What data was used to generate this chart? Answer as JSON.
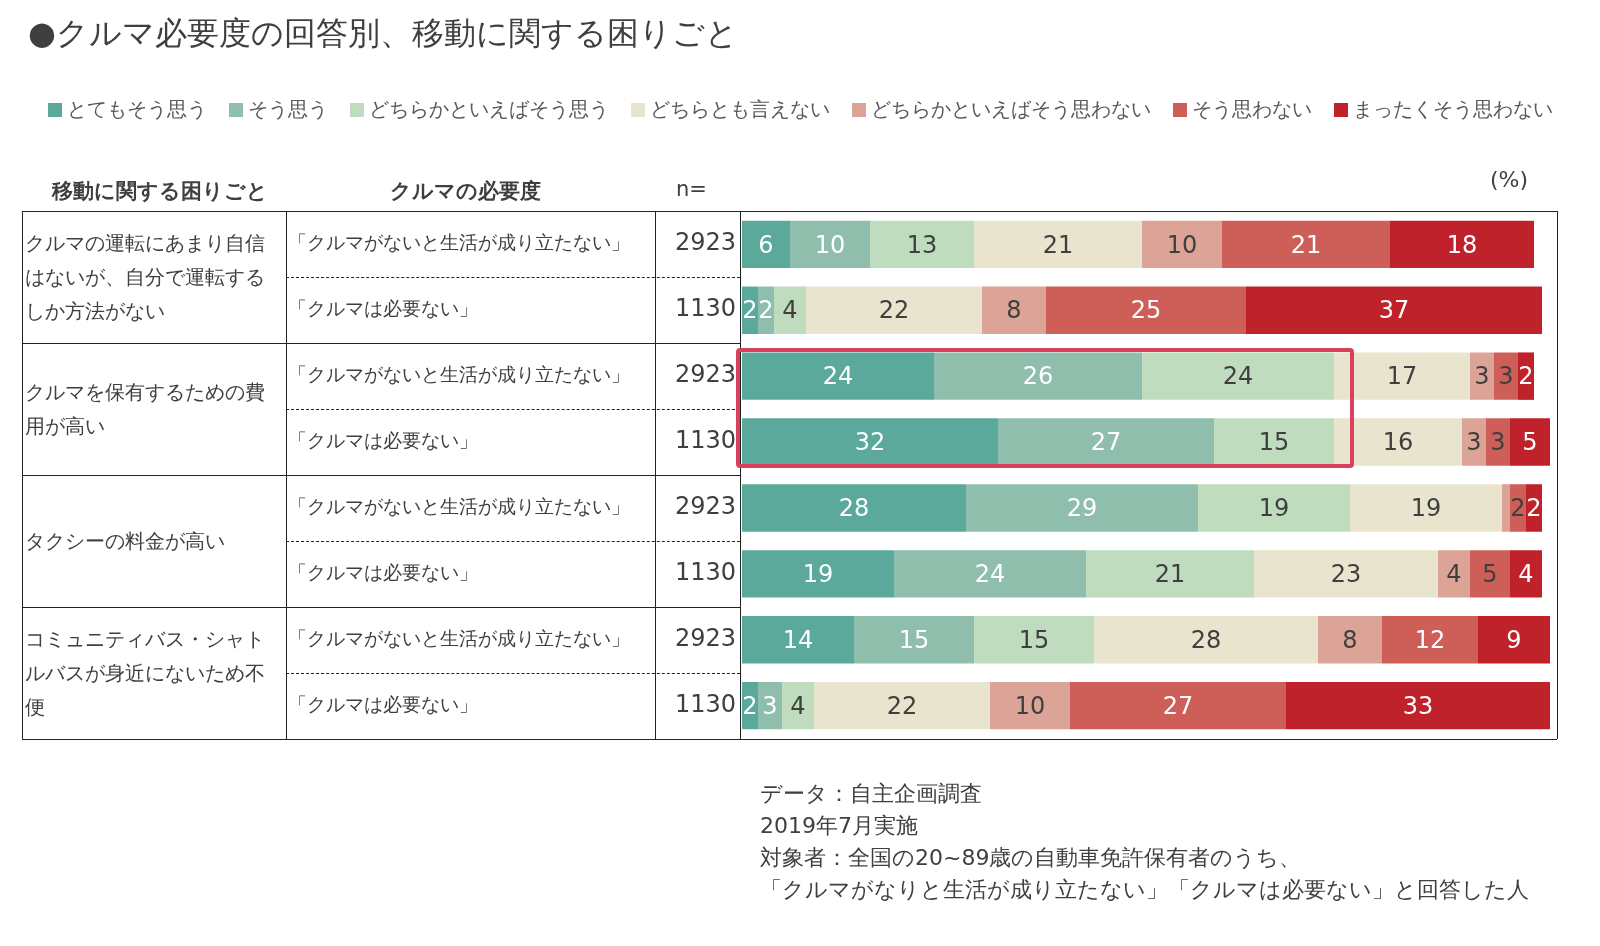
{
  "chart_data": {
    "type": "bar",
    "orientation": "horizontal",
    "stacked": true,
    "title": "●クルマ必要度の回答別、移動に関する困りごと",
    "categories": [
      "「クルマがないと生活が成り立たない」",
      "「クルマは必要ない」",
      "「クルマがないと生活が成り立たない」",
      "「クルマは必要ない」",
      "「クルマがないと生活が成り立たない」",
      "「クルマは必要ない」",
      "「クルマがないと生活が成り立たない」",
      "「クルマは必要ない」"
    ],
    "series": [
      {
        "name": "とてもそう思う",
        "color": "#5ba99b",
        "values": [
          6,
          2,
          24,
          32,
          28,
          19,
          14,
          2
        ]
      },
      {
        "name": "そう思う",
        "color": "#8fbfac",
        "values": [
          10,
          2,
          26,
          27,
          29,
          24,
          15,
          3
        ]
      },
      {
        "name": "どちらかといえばそう思う",
        "color": "#bfdcbf",
        "values": [
          13,
          4,
          24,
          15,
          19,
          21,
          15,
          4
        ]
      },
      {
        "name": "どちらとも言えない",
        "color": "#e9e4cd",
        "values": [
          21,
          22,
          17,
          16,
          19,
          23,
          28,
          22
        ]
      },
      {
        "name": "どちらかといえばそう思わない",
        "color": "#dca497",
        "values": [
          10,
          8,
          3,
          3,
          1,
          4,
          8,
          10
        ],
        "value_labels": [
          "10",
          "8",
          "3",
          "3",
          null,
          "4",
          "8",
          "10"
        ]
      },
      {
        "name": "そう思わない",
        "color": "#cd5f58",
        "values": [
          21,
          25,
          3,
          3,
          2,
          5,
          12,
          27
        ]
      },
      {
        "name": "まったくそう思わない",
        "color": "#c0222b",
        "values": [
          18,
          37,
          2,
          5,
          2,
          4,
          9,
          33
        ]
      }
    ],
    "xlim": [
      0,
      101
    ],
    "tick_labels": "y",
    "data_labels": true,
    "legend": "top",
    "grid": false,
    "annotations": [
      "移動に関する困りごと",
      "クルマの必要度",
      "n=",
      "(%)",
      "クルマの運転にあまり自信はないが、自分で運転するしか方法がない",
      "クルマを保有するための費用が高い",
      "タクシーの料金が高い",
      "コミュニティバス・シャトルバスが身近にないため不便",
      "2923",
      "1130",
      "2923",
      "1130",
      "2923",
      "1130",
      "2923",
      "1130",
      "データ：自主企画調査",
      "2019年7月実施",
      "対象者：全国の20~89歳の自動車免許保有者のうち、",
      "「クルマがなりと生活が成り立たない」「クルマは必要ない」と回答した人"
    ]
  }
}
